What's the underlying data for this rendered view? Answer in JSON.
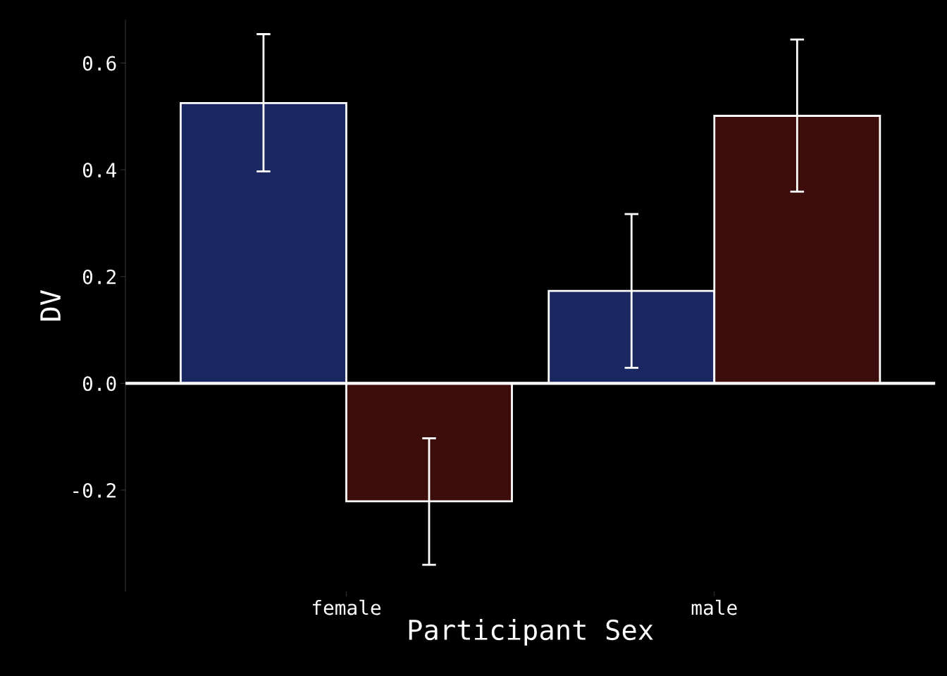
{
  "chart_data": {
    "type": "bar",
    "xlabel": "Participant Sex",
    "ylabel": "DV",
    "categories": [
      "female",
      "male"
    ],
    "series": [
      {
        "color": "#1a2761",
        "values": [
          0.525,
          0.173
        ],
        "errors": [
          [
            0.397,
            0.654
          ],
          [
            0.029,
            0.317
          ]
        ]
      },
      {
        "color": "#3c0d0a",
        "values": [
          -0.221,
          0.501
        ],
        "errors": [
          [
            -0.34,
            -0.103
          ],
          [
            0.359,
            0.644
          ]
        ]
      }
    ],
    "ylim": [
      -0.39,
      0.68
    ],
    "yticks": [
      {
        "value": -0.2,
        "label": "-0.2"
      },
      {
        "value": 0.0,
        "label": "0.0"
      },
      {
        "value": 0.2,
        "label": "0.2"
      },
      {
        "value": 0.4,
        "label": "0.4"
      },
      {
        "value": 0.6,
        "label": "0.6"
      }
    ],
    "ref_lines": [
      {
        "axis": "y",
        "value": 0,
        "label": null,
        "color": "#ffffff"
      }
    ],
    "grid": false,
    "legend": false
  }
}
